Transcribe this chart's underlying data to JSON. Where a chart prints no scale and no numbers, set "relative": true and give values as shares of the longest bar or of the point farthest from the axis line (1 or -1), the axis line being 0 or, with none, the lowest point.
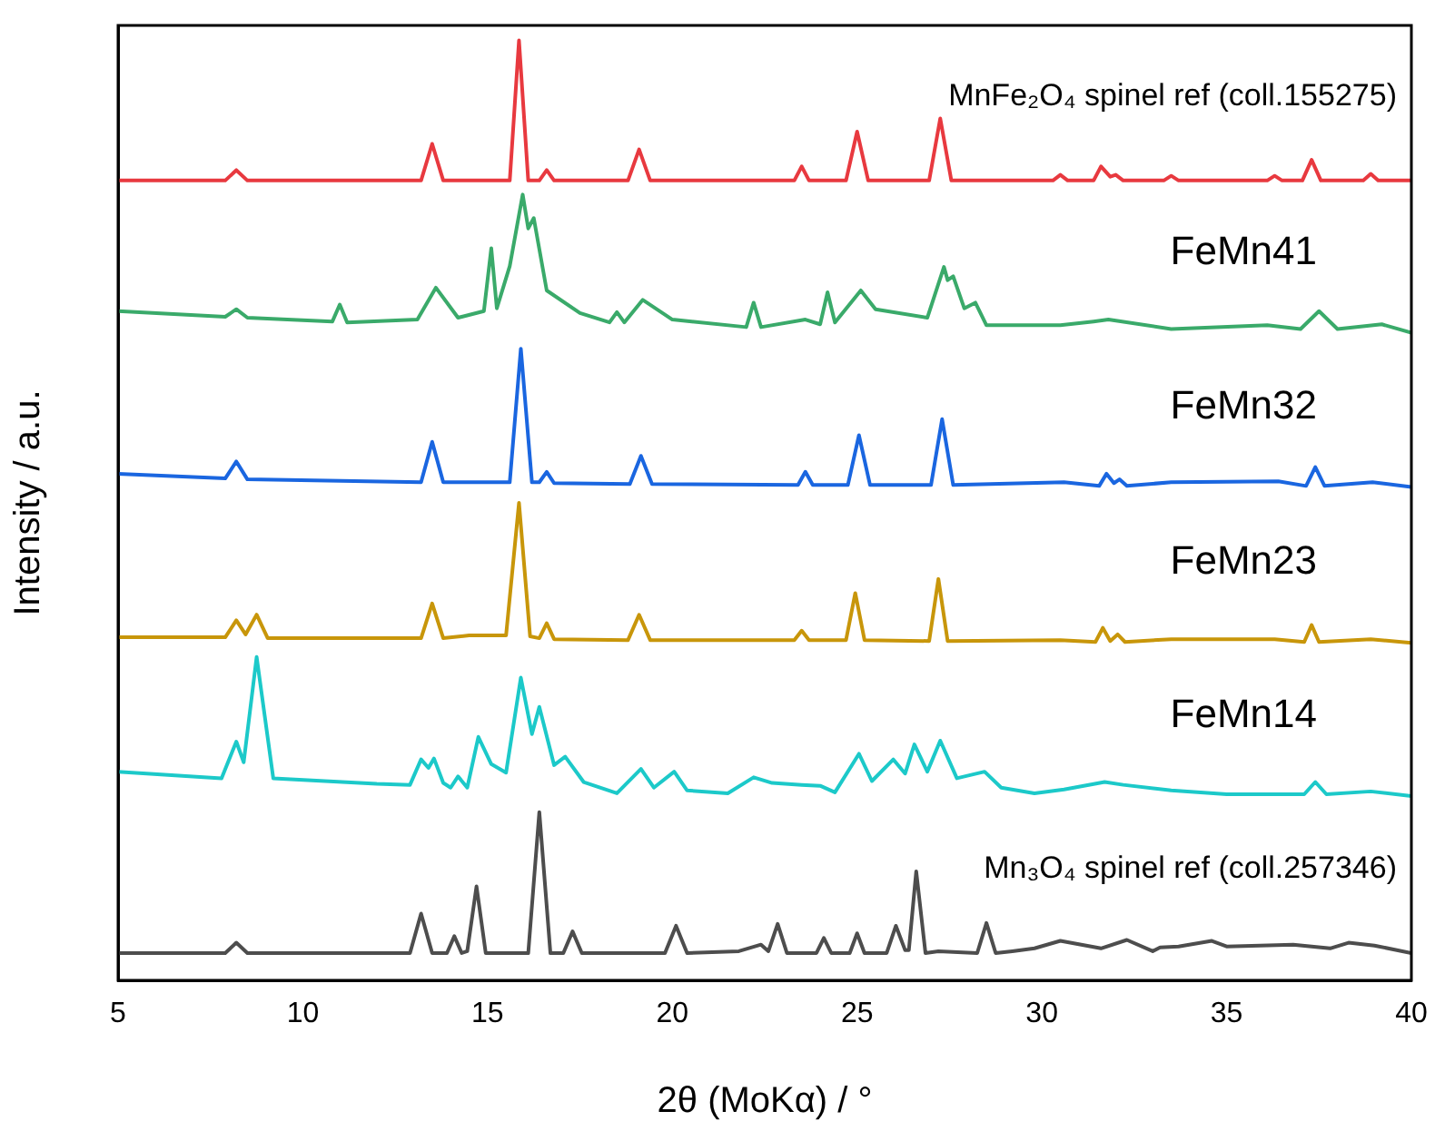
{
  "chart_data": {
    "type": "line",
    "relative": true,
    "xlabel": "2θ (MoKα) / °",
    "ylabel": "Intensity / a.u.",
    "xlim": [
      5,
      40
    ],
    "xticks": [
      5,
      10,
      15,
      20,
      25,
      30,
      35,
      40
    ],
    "grid": false,
    "legend": false,
    "marker": "none",
    "line_style": "solid",
    "series": [
      {
        "name": "MnFe₂O₄ spinel ref (coll.155275)",
        "color": "#e8393f",
        "x": [
          5,
          7.9,
          8.2,
          8.5,
          13.2,
          13.5,
          13.8,
          15.6,
          15.85,
          16.1,
          16.4,
          16.6,
          16.8,
          18.8,
          19.1,
          19.4,
          23.3,
          23.5,
          23.7,
          24.7,
          25.0,
          25.3,
          26.95,
          27.25,
          27.55,
          30.3,
          30.5,
          30.7,
          31.4,
          31.6,
          31.85,
          32.0,
          32.2,
          33.3,
          33.5,
          33.7,
          36.1,
          36.3,
          36.5,
          37.05,
          37.3,
          37.55,
          38.7,
          38.9,
          39.1,
          40
        ],
        "values": [
          0.851,
          0.851,
          0.862,
          0.851,
          0.851,
          0.89,
          0.851,
          0.851,
          1.0,
          0.851,
          0.851,
          0.862,
          0.851,
          0.851,
          0.884,
          0.851,
          0.851,
          0.866,
          0.851,
          0.851,
          0.903,
          0.851,
          0.851,
          0.917,
          0.851,
          0.851,
          0.857,
          0.851,
          0.851,
          0.866,
          0.855,
          0.857,
          0.851,
          0.851,
          0.856,
          0.851,
          0.851,
          0.856,
          0.851,
          0.851,
          0.873,
          0.851,
          0.851,
          0.858,
          0.851,
          0.851
        ]
      },
      {
        "name": "FeMn41",
        "color": "#3aaa6a",
        "x": [
          5,
          7.9,
          8.2,
          8.5,
          10.8,
          11.0,
          11.2,
          13.1,
          13.6,
          14.2,
          14.9,
          15.1,
          15.25,
          15.6,
          15.95,
          16.1,
          16.25,
          16.6,
          17.5,
          18.3,
          18.5,
          18.7,
          19.2,
          20.0,
          22.0,
          22.2,
          22.4,
          23.6,
          24.0,
          24.2,
          24.4,
          25.1,
          25.5,
          26.9,
          27.35,
          27.45,
          27.6,
          27.9,
          28.2,
          28.5,
          30.5,
          31.4,
          31.8,
          33.5,
          36.1,
          37.0,
          37.5,
          38.0,
          39.2,
          40
        ],
        "values": [
          0.712,
          0.706,
          0.714,
          0.705,
          0.701,
          0.719,
          0.7,
          0.703,
          0.737,
          0.705,
          0.712,
          0.779,
          0.715,
          0.76,
          0.836,
          0.8,
          0.811,
          0.734,
          0.71,
          0.7,
          0.711,
          0.7,
          0.724,
          0.703,
          0.695,
          0.721,
          0.695,
          0.703,
          0.698,
          0.732,
          0.7,
          0.734,
          0.714,
          0.705,
          0.759,
          0.745,
          0.749,
          0.715,
          0.721,
          0.697,
          0.697,
          0.701,
          0.703,
          0.693,
          0.697,
          0.693,
          0.712,
          0.693,
          0.698,
          0.689
        ]
      },
      {
        "name": "FeMn32",
        "color": "#1a66e0",
        "x": [
          5,
          7.9,
          8.2,
          8.5,
          13.2,
          13.5,
          13.8,
          15.6,
          15.9,
          16.2,
          16.4,
          16.6,
          16.8,
          18.85,
          19.15,
          19.45,
          23.4,
          23.6,
          23.8,
          24.75,
          25.05,
          25.35,
          27.0,
          27.3,
          27.6,
          30.6,
          31.55,
          31.75,
          31.95,
          32.1,
          32.3,
          33.5,
          36.4,
          37.15,
          37.4,
          37.65,
          38.95,
          40
        ],
        "values": [
          0.539,
          0.534,
          0.552,
          0.533,
          0.53,
          0.573,
          0.53,
          0.53,
          0.672,
          0.53,
          0.53,
          0.541,
          0.529,
          0.528,
          0.558,
          0.528,
          0.527,
          0.541,
          0.527,
          0.527,
          0.58,
          0.527,
          0.527,
          0.597,
          0.527,
          0.53,
          0.526,
          0.539,
          0.529,
          0.533,
          0.526,
          0.53,
          0.531,
          0.526,
          0.546,
          0.526,
          0.53,
          0.525
        ]
      },
      {
        "name": "FeMn23",
        "color": "#c8960a",
        "x": [
          5,
          7.9,
          8.2,
          8.45,
          8.75,
          9.05,
          13.2,
          13.5,
          13.8,
          14.5,
          15.5,
          15.85,
          16.15,
          16.4,
          16.6,
          16.8,
          18.8,
          19.1,
          19.4,
          23.3,
          23.5,
          23.7,
          24.7,
          24.95,
          25.2,
          26.95,
          27.2,
          27.45,
          30.5,
          31.45,
          31.65,
          31.85,
          32.05,
          32.25,
          33.5,
          36.3,
          37.1,
          37.3,
          37.5,
          38.9,
          40
        ],
        "values": [
          0.365,
          0.365,
          0.383,
          0.368,
          0.389,
          0.364,
          0.364,
          0.401,
          0.364,
          0.367,
          0.367,
          0.508,
          0.366,
          0.364,
          0.38,
          0.363,
          0.362,
          0.389,
          0.362,
          0.362,
          0.372,
          0.362,
          0.362,
          0.412,
          0.362,
          0.361,
          0.427,
          0.361,
          0.362,
          0.36,
          0.375,
          0.361,
          0.368,
          0.36,
          0.363,
          0.363,
          0.36,
          0.378,
          0.36,
          0.363,
          0.359
        ]
      },
      {
        "name": "FeMn14",
        "color": "#1cc9c9",
        "x": [
          5,
          7.8,
          8.2,
          8.4,
          8.75,
          9.2,
          12.0,
          12.9,
          13.2,
          13.4,
          13.55,
          13.8,
          14.0,
          14.2,
          14.45,
          14.75,
          15.1,
          15.5,
          15.9,
          16.2,
          16.4,
          16.8,
          17.1,
          17.6,
          18.5,
          19.15,
          19.5,
          20.05,
          20.4,
          21.5,
          22.2,
          22.7,
          23.5,
          24.0,
          24.4,
          25.05,
          25.4,
          25.98,
          26.3,
          26.55,
          26.9,
          27.25,
          27.7,
          28.45,
          28.9,
          29.8,
          30.6,
          31.7,
          32.2,
          33.5,
          35.0,
          37.1,
          37.4,
          37.7,
          38.9,
          40
        ],
        "values": [
          0.222,
          0.215,
          0.254,
          0.232,
          0.344,
          0.215,
          0.209,
          0.208,
          0.235,
          0.226,
          0.236,
          0.21,
          0.205,
          0.217,
          0.205,
          0.259,
          0.23,
          0.221,
          0.322,
          0.262,
          0.291,
          0.229,
          0.238,
          0.211,
          0.199,
          0.225,
          0.205,
          0.222,
          0.202,
          0.199,
          0.216,
          0.21,
          0.208,
          0.207,
          0.2,
          0.241,
          0.212,
          0.235,
          0.22,
          0.251,
          0.222,
          0.255,
          0.215,
          0.222,
          0.205,
          0.199,
          0.203,
          0.211,
          0.208,
          0.202,
          0.198,
          0.198,
          0.211,
          0.198,
          0.201,
          0.196
        ]
      },
      {
        "name": "Mn₃O₄ spinel ref (coll.257346)",
        "color": "#4d4d4d",
        "x": [
          5,
          7.9,
          8.2,
          8.5,
          12.9,
          13.2,
          13.5,
          13.9,
          14.1,
          14.3,
          14.45,
          14.7,
          14.95,
          16.1,
          16.4,
          16.7,
          17.05,
          17.3,
          17.55,
          19.8,
          20.1,
          20.4,
          21.8,
          22.4,
          22.6,
          22.85,
          23.1,
          23.9,
          24.1,
          24.3,
          24.8,
          25.0,
          25.2,
          25.8,
          26.05,
          26.3,
          26.4,
          26.6,
          26.85,
          27.2,
          28.25,
          28.5,
          28.75,
          29.2,
          29.8,
          30.5,
          31.6,
          32.3,
          33.0,
          33.2,
          33.7,
          34.6,
          35.0,
          36.8,
          37.8,
          38.3,
          39.0,
          40
        ],
        "values": [
          0.029,
          0.029,
          0.04,
          0.029,
          0.029,
          0.071,
          0.029,
          0.029,
          0.047,
          0.029,
          0.031,
          0.1,
          0.029,
          0.029,
          0.179,
          0.029,
          0.029,
          0.052,
          0.029,
          0.029,
          0.058,
          0.029,
          0.031,
          0.038,
          0.031,
          0.06,
          0.029,
          0.029,
          0.045,
          0.029,
          0.029,
          0.05,
          0.029,
          0.029,
          0.058,
          0.032,
          0.032,
          0.116,
          0.029,
          0.031,
          0.029,
          0.061,
          0.029,
          0.031,
          0.034,
          0.042,
          0.034,
          0.043,
          0.031,
          0.035,
          0.036,
          0.042,
          0.036,
          0.038,
          0.034,
          0.04,
          0.037,
          0.029
        ]
      }
    ]
  }
}
